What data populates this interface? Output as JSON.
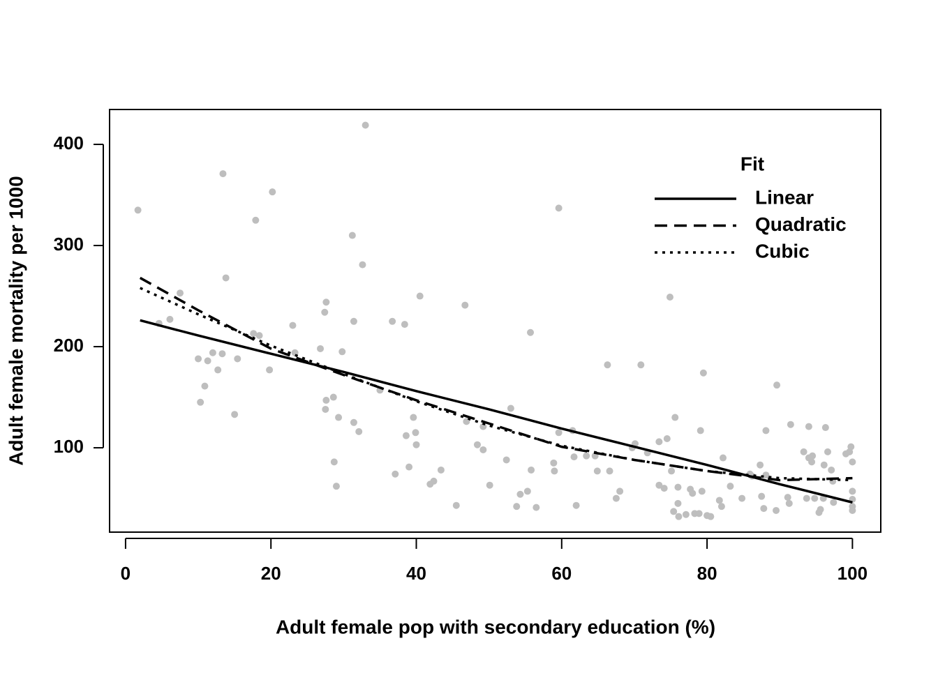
{
  "chart_data": {
    "type": "scatter",
    "x_label": "Adult female pop with secondary education (%)",
    "y_label": "Adult female mortality per 1000",
    "xlim": [
      -2.2,
      103.9
    ],
    "ylim": [
      16.6,
      434.5
    ],
    "xticks": [
      0,
      20,
      40,
      60,
      80,
      100
    ],
    "yticks": [
      100,
      200,
      300,
      400
    ],
    "points": {
      "color": "#bebebe",
      "x": [
        1.7,
        4.6,
        6.1,
        7.5,
        10,
        10.3,
        10.9,
        11.3,
        12,
        12.7,
        13.3,
        13.4,
        13.8,
        15,
        15.4,
        17.9,
        17.6,
        18.4,
        19.8,
        20.2,
        23,
        23.3,
        26.8,
        27.4,
        27.6,
        27.6,
        27.5,
        28.6,
        28.7,
        29,
        29.3,
        29.8,
        31.2,
        31.4,
        31.4,
        32.1,
        32.6,
        33,
        35,
        36.7,
        37.1,
        38.4,
        38.6,
        39,
        39.6,
        39.9,
        40,
        40.5,
        41.9,
        42.4,
        43.4,
        45.5,
        46.7,
        46.9,
        48.4,
        49.2,
        49.2,
        50.1,
        52.4,
        53,
        53.8,
        54.3,
        55.3,
        55.8,
        55.7,
        56.5,
        58.9,
        59,
        59.6,
        59.6,
        61.5,
        61.7,
        62,
        63.4,
        64.6,
        64.9,
        66.3,
        66.6,
        67.5,
        68,
        69.7,
        70.1,
        70.9,
        71.8,
        73.4,
        73.4,
        74.1,
        74.5,
        74.9,
        75.1,
        75.4,
        75.6,
        76,
        76,
        76.1,
        77.1,
        77.7,
        78,
        78.3,
        78.9,
        79.1,
        79.3,
        79.5,
        80,
        80.5,
        81.7,
        82,
        82.2,
        83.2,
        84.8,
        85.9,
        86.2,
        87.3,
        87.5,
        87.8,
        88.1,
        88.1,
        89.5,
        89.6,
        91.1,
        91.3,
        91.5,
        93.3,
        93.7,
        94,
        94,
        94.4,
        94.5,
        94.8,
        95.4,
        95.6,
        96,
        96.1,
        96.3,
        96.6,
        97.1,
        97.3,
        97.4,
        99.1,
        99.6,
        99.8,
        100,
        100,
        100,
        100,
        100
      ],
      "y": [
        335,
        223,
        227,
        253,
        188,
        145,
        161,
        186,
        194,
        177,
        193,
        371,
        268,
        133,
        188,
        325,
        213,
        211,
        177,
        353,
        221,
        194,
        198,
        234,
        244,
        147,
        138,
        150,
        86,
        62,
        130,
        195,
        310,
        225,
        125,
        116,
        281,
        419,
        157,
        225,
        74,
        222,
        112,
        81,
        130,
        115,
        103,
        250,
        64,
        67,
        78,
        43,
        241,
        126,
        103,
        98,
        121,
        63,
        88,
        139,
        42,
        54,
        57,
        78,
        214,
        41,
        85,
        77,
        337,
        115,
        117,
        91,
        43,
        92,
        92,
        77,
        182,
        77,
        50,
        57,
        100,
        104,
        182,
        95,
        106,
        63,
        60,
        109,
        249,
        77,
        37,
        130,
        45,
        61,
        32,
        34,
        59,
        55,
        35,
        35,
        117,
        57,
        174,
        33,
        32,
        48,
        42,
        90,
        62,
        50,
        74,
        72,
        83,
        52,
        40,
        117,
        73,
        38,
        162,
        51,
        45,
        123,
        96,
        50,
        121,
        90,
        86,
        92,
        50,
        36,
        39,
        50,
        83,
        120,
        96,
        78,
        67,
        46,
        94,
        96,
        101,
        86,
        57,
        49,
        42,
        38
      ]
    },
    "series": [
      {
        "name": "Linear",
        "color": "#000000",
        "linestyle": "solid",
        "x": [
          2,
          10,
          20,
          30,
          40,
          50,
          60,
          70,
          80,
          90,
          100
        ],
        "values": [
          226,
          211,
          193,
          175,
          156,
          138,
          119,
          101,
          83,
          64,
          46
        ]
      },
      {
        "name": "Quadratic",
        "color": "#000000",
        "linestyle": "dashed",
        "x": [
          2,
          10,
          20,
          30,
          40,
          50,
          60,
          70,
          80,
          90,
          100
        ],
        "values": [
          268,
          236,
          198,
          172,
          147,
          124,
          101,
          88,
          77,
          68,
          70
        ]
      },
      {
        "name": "Cubic",
        "color": "#000000",
        "linestyle": "dotted",
        "x": [
          2,
          10,
          20,
          30,
          40,
          50,
          60,
          70,
          80,
          90,
          100
        ],
        "values": [
          258,
          232,
          201,
          173,
          146,
          122,
          102,
          88,
          77,
          70,
          68
        ]
      }
    ],
    "legend": {
      "title": "Fit",
      "position": "top-right"
    }
  }
}
